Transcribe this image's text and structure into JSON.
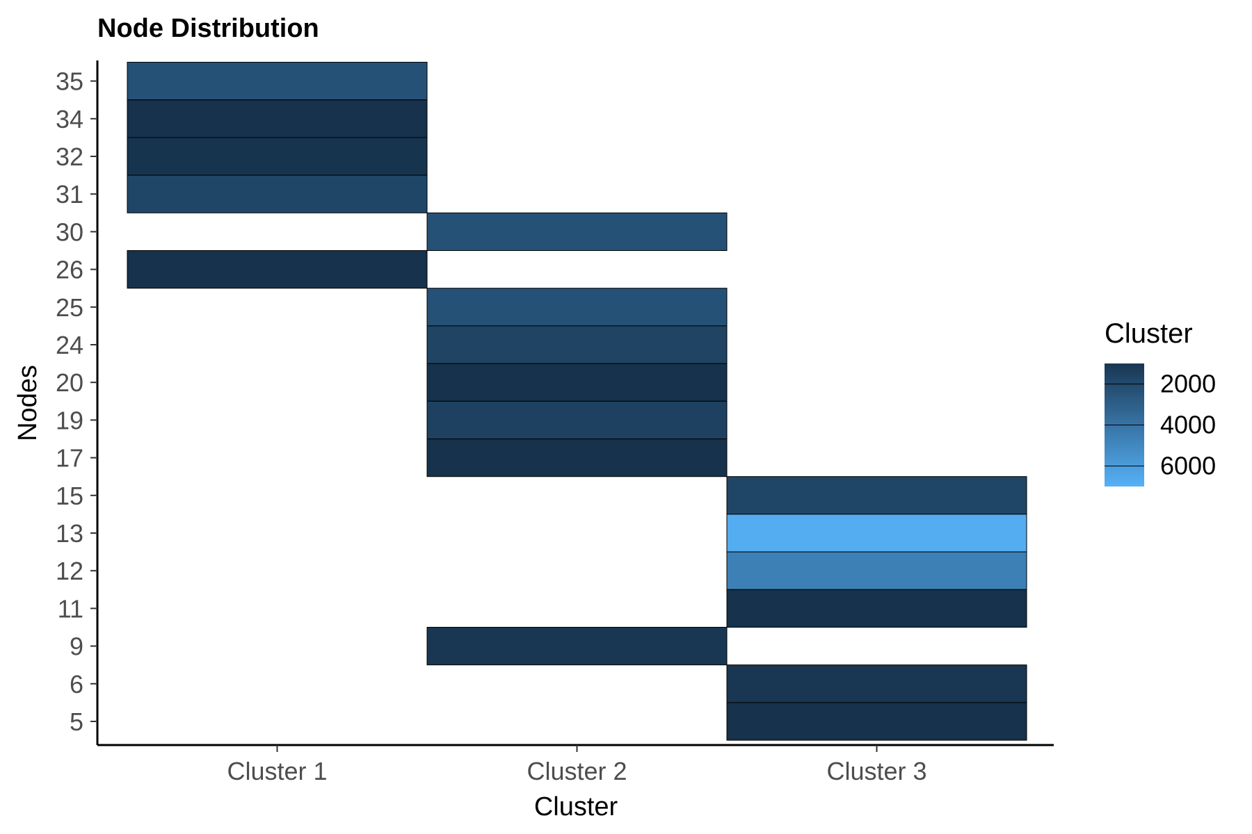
{
  "chart_data": {
    "type": "heatmap",
    "title": "Node Distribution",
    "xlabel": "Cluster",
    "ylabel": "Nodes",
    "x_categories": [
      "Cluster 1",
      "Cluster 2",
      "Cluster 3"
    ],
    "y_categories": [
      "5",
      "6",
      "9",
      "11",
      "12",
      "13",
      "15",
      "17",
      "19",
      "20",
      "24",
      "25",
      "26",
      "30",
      "31",
      "32",
      "34",
      "35"
    ],
    "cells": [
      {
        "x": "Cluster 1",
        "y": "35",
        "value": 2200
      },
      {
        "x": "Cluster 1",
        "y": "34",
        "value": 800
      },
      {
        "x": "Cluster 1",
        "y": "32",
        "value": 900
      },
      {
        "x": "Cluster 1",
        "y": "31",
        "value": 1700
      },
      {
        "x": "Cluster 1",
        "y": "26",
        "value": 800
      },
      {
        "x": "Cluster 2",
        "y": "30",
        "value": 2200
      },
      {
        "x": "Cluster 2",
        "y": "25",
        "value": 2200
      },
      {
        "x": "Cluster 2",
        "y": "24",
        "value": 1600
      },
      {
        "x": "Cluster 2",
        "y": "20",
        "value": 800
      },
      {
        "x": "Cluster 2",
        "y": "19",
        "value": 1500
      },
      {
        "x": "Cluster 2",
        "y": "17",
        "value": 800
      },
      {
        "x": "Cluster 2",
        "y": "9",
        "value": 1000
      },
      {
        "x": "Cluster 3",
        "y": "15",
        "value": 1700
      },
      {
        "x": "Cluster 3",
        "y": "13",
        "value": 6300
      },
      {
        "x": "Cluster 3",
        "y": "12",
        "value": 4300
      },
      {
        "x": "Cluster 3",
        "y": "11",
        "value": 800
      },
      {
        "x": "Cluster 3",
        "y": "6",
        "value": 1000
      },
      {
        "x": "Cluster 3",
        "y": "5",
        "value": 800
      }
    ],
    "legend": {
      "title": "Cluster",
      "position": "right",
      "breaks": [
        {
          "label": "2000",
          "value": 2000
        },
        {
          "label": "4000",
          "value": 4000
        },
        {
          "label": "6000",
          "value": 6000
        }
      ],
      "color_low": "#132B43",
      "color_high": "#56B1F7",
      "value_range": [
        500,
        6500
      ]
    },
    "grid": false
  }
}
